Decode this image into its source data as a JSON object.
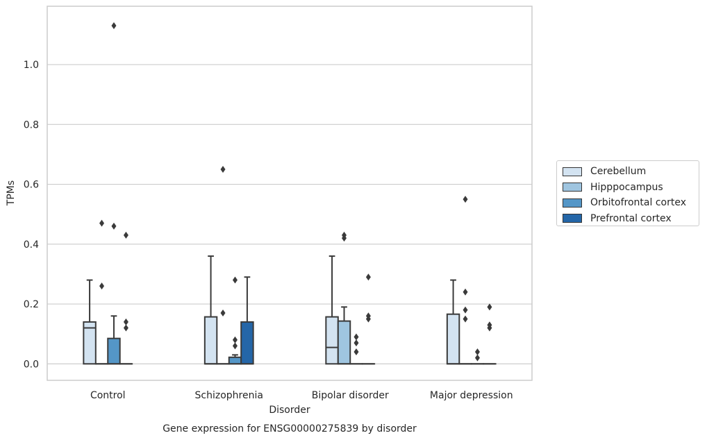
{
  "chart_data": {
    "type": "box",
    "title": "Gene expression for ENSG00000275839 by disorder",
    "xlabel": "Disorder",
    "ylabel": "TPMs",
    "categories": [
      "Control",
      "Schizophrenia",
      "Bipolar disorder",
      "Major depression"
    ],
    "yticks": [
      "0.0",
      "0.2",
      "0.4",
      "0.6",
      "0.8",
      "1.0"
    ],
    "ylim": [
      -0.055,
      1.195
    ],
    "grid": "horizontal",
    "legend_position": "right",
    "series": [
      {
        "name": "Cerebellum",
        "color": "#d3e3f1",
        "boxes": [
          {
            "q1": 0.0,
            "median": 0.12,
            "q3": 0.14,
            "whisker_low": 0.0,
            "whisker_high": 0.28,
            "outliers": []
          },
          {
            "q1": 0.0,
            "median": 0.0,
            "q3": 0.157,
            "whisker_low": 0.0,
            "whisker_high": 0.36,
            "outliers": []
          },
          {
            "q1": 0.0,
            "median": 0.055,
            "q3": 0.157,
            "whisker_low": 0.0,
            "whisker_high": 0.36,
            "outliers": []
          },
          {
            "q1": 0.0,
            "median": 0.0,
            "q3": 0.166,
            "whisker_low": 0.0,
            "whisker_high": 0.28,
            "outliers": []
          }
        ]
      },
      {
        "name": "Hipppocampus",
        "color": "#9fc5e0",
        "boxes": [
          {
            "q1": 0.0,
            "median": 0.0,
            "q3": 0.0,
            "whisker_low": 0.0,
            "whisker_high": 0.0,
            "outliers": [
              0.26,
              0.47
            ]
          },
          {
            "q1": 0.0,
            "median": 0.0,
            "q3": 0.0,
            "whisker_low": 0.0,
            "whisker_high": 0.0,
            "outliers": [
              0.17,
              0.65
            ]
          },
          {
            "q1": 0.0,
            "median": 0.0,
            "q3": 0.143,
            "whisker_low": 0.0,
            "whisker_high": 0.19,
            "outliers": [
              0.42,
              0.43
            ]
          },
          {
            "q1": 0.0,
            "median": 0.0,
            "q3": 0.0,
            "whisker_low": 0.0,
            "whisker_high": 0.0,
            "outliers": [
              0.15,
              0.18,
              0.24,
              0.55
            ]
          }
        ]
      },
      {
        "name": "Orbitofrontal cortex",
        "color": "#5496c7",
        "boxes": [
          {
            "q1": 0.0,
            "median": 0.0,
            "q3": 0.085,
            "whisker_low": 0.0,
            "whisker_high": 0.16,
            "outliers": [
              0.46,
              1.13
            ]
          },
          {
            "q1": 0.0,
            "median": 0.0,
            "q3": 0.022,
            "whisker_low": 0.0,
            "whisker_high": 0.03,
            "outliers": [
              0.06,
              0.08,
              0.28
            ]
          },
          {
            "q1": 0.0,
            "median": 0.0,
            "q3": 0.0,
            "whisker_low": 0.0,
            "whisker_high": 0.0,
            "outliers": [
              0.04,
              0.07,
              0.09
            ]
          },
          {
            "q1": 0.0,
            "median": 0.0,
            "q3": 0.0,
            "whisker_low": 0.0,
            "whisker_high": 0.0,
            "outliers": [
              0.02,
              0.04
            ]
          }
        ]
      },
      {
        "name": "Prefrontal cortex",
        "color": "#2466a8",
        "boxes": [
          {
            "q1": 0.0,
            "median": 0.0,
            "q3": 0.0,
            "whisker_low": 0.0,
            "whisker_high": 0.0,
            "outliers": [
              0.12,
              0.14,
              0.43
            ]
          },
          {
            "q1": 0.0,
            "median": 0.0,
            "q3": 0.14,
            "whisker_low": 0.0,
            "whisker_high": 0.29,
            "outliers": []
          },
          {
            "q1": 0.0,
            "median": 0.0,
            "q3": 0.0,
            "whisker_low": 0.0,
            "whisker_high": 0.0,
            "outliers": [
              0.15,
              0.16,
              0.29
            ]
          },
          {
            "q1": 0.0,
            "median": 0.0,
            "q3": 0.0,
            "whisker_low": 0.0,
            "whisker_high": 0.0,
            "outliers": [
              0.12,
              0.13,
              0.19
            ]
          }
        ]
      }
    ]
  }
}
